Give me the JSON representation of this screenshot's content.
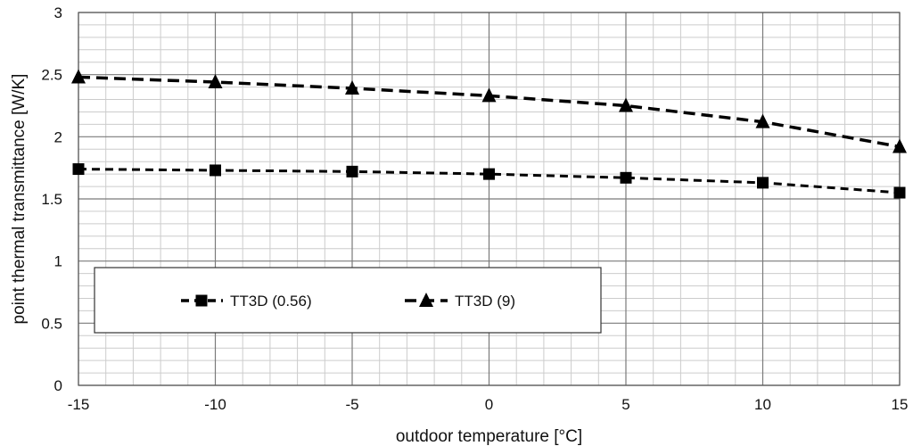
{
  "chart_data": {
    "type": "line",
    "title": "",
    "xlabel": "outdoor temperature [°C]",
    "ylabel": "point thermal transmittance  [W/K]",
    "xlim": [
      -15,
      15
    ],
    "ylim": [
      0,
      3
    ],
    "x_ticks": [
      -15,
      -10,
      -5,
      0,
      5,
      10,
      15
    ],
    "y_ticks": [
      0,
      0.5,
      1,
      1.5,
      2,
      2.5,
      3
    ],
    "x": [
      -15,
      -10,
      -5,
      0,
      5,
      10,
      15
    ],
    "grid": true,
    "legend_position": "lower-left (inside plot)",
    "series": [
      {
        "name": "TT3D (0.56)",
        "marker": "square",
        "line_style": "dashed",
        "color": "#000000",
        "values": [
          1.74,
          1.73,
          1.72,
          1.7,
          1.67,
          1.63,
          1.55
        ]
      },
      {
        "name": "TT3D (9)",
        "marker": "triangle",
        "line_style": "dashed",
        "color": "#000000",
        "values": [
          2.48,
          2.44,
          2.39,
          2.33,
          2.25,
          2.12,
          1.92
        ]
      }
    ]
  }
}
